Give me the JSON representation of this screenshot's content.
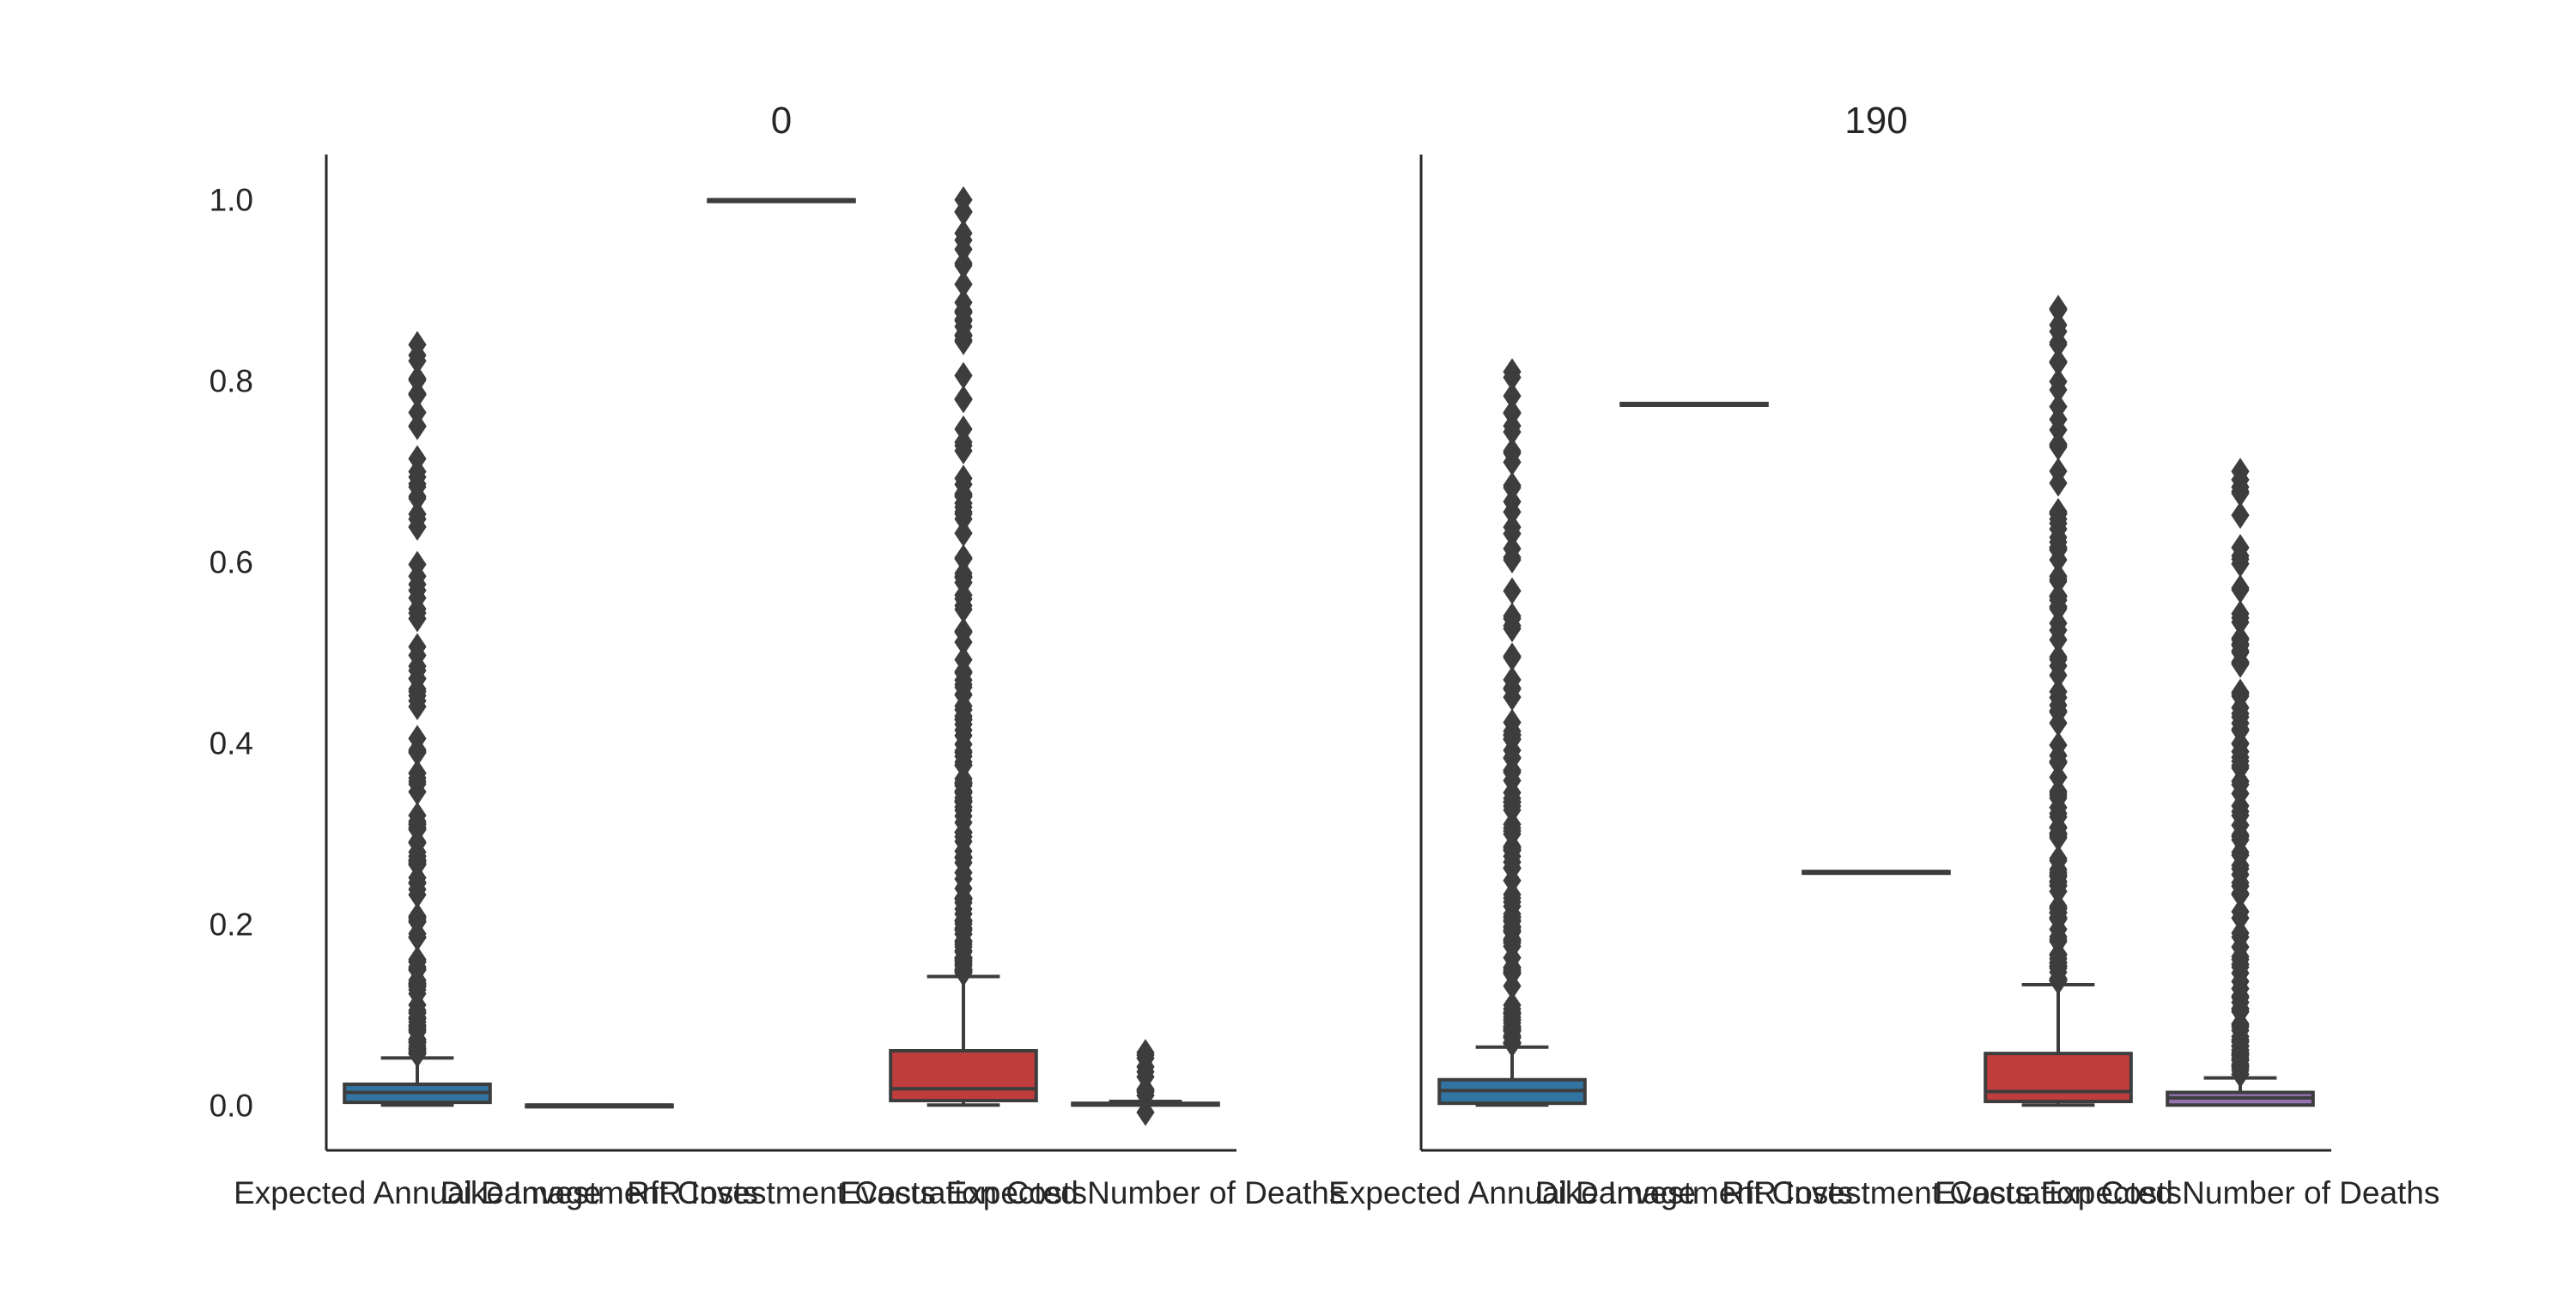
{
  "colors": {
    "axis": "#262626",
    "box_edge": "#3d3d3d",
    "expected_annual_damages": "#3274a1",
    "dike_investment_costs": "#3a923a",
    "rfr_investment_costs": "#e1812c",
    "evacuation_costs": "#c03d3e",
    "expected_number_of_deaths": "#9372b2"
  },
  "chart_data": {
    "type": "box",
    "categories": [
      "Expected Annual Damage",
      "Dike Investment Costs",
      "RfR Investment Costs",
      "Evacuation Costs",
      "Expected Number of Deaths"
    ],
    "y_ticks": [
      "0.0",
      "0.2",
      "0.4",
      "0.6",
      "0.8",
      "1.0"
    ],
    "y_tick_values": [
      0.0,
      0.2,
      0.4,
      0.6,
      0.8,
      1.0
    ],
    "ylim": [
      -0.05,
      1.05
    ],
    "grid": false,
    "panels": [
      {
        "title": "0",
        "boxes": [
          {
            "q1": 0.003,
            "median": 0.014,
            "q3": 0.023,
            "whisker_low": 0.0,
            "whisker_high": 0.052,
            "outlier_max": 0.84
          },
          {
            "q1": 0.0,
            "median": 0.0,
            "q3": 0.0,
            "whisker_low": 0.0,
            "whisker_high": 0.0,
            "outlier_max": null
          },
          {
            "q1": 1.0,
            "median": 1.0,
            "q3": 1.0,
            "whisker_low": 1.0,
            "whisker_high": 1.0,
            "outlier_max": null
          },
          {
            "q1": 0.005,
            "median": 0.018,
            "q3": 0.06,
            "whisker_low": 0.0,
            "whisker_high": 0.142,
            "outlier_max": 1.0
          },
          {
            "q1": 0.0,
            "median": 0.001,
            "q3": 0.002,
            "whisker_low": 0.0,
            "whisker_high": 0.004,
            "outlier_max": 0.058,
            "outlier_min": -0.008
          }
        ]
      },
      {
        "title": "190",
        "boxes": [
          {
            "q1": 0.002,
            "median": 0.016,
            "q3": 0.028,
            "whisker_low": 0.0,
            "whisker_high": 0.064,
            "outlier_max": 0.81
          },
          {
            "q1": 0.775,
            "median": 0.775,
            "q3": 0.775,
            "whisker_low": 0.775,
            "whisker_high": 0.775,
            "outlier_max": null
          },
          {
            "q1": 0.258,
            "median": 0.258,
            "q3": 0.258,
            "whisker_low": 0.258,
            "whisker_high": 0.258,
            "outlier_max": null
          },
          {
            "q1": 0.004,
            "median": 0.015,
            "q3": 0.057,
            "whisker_low": 0.0,
            "whisker_high": 0.133,
            "outlier_max": 0.88
          },
          {
            "q1": 0.0,
            "median": 0.008,
            "q3": 0.014,
            "whisker_low": 0.0,
            "whisker_high": 0.03,
            "outlier_max": 0.7
          }
        ]
      }
    ]
  }
}
